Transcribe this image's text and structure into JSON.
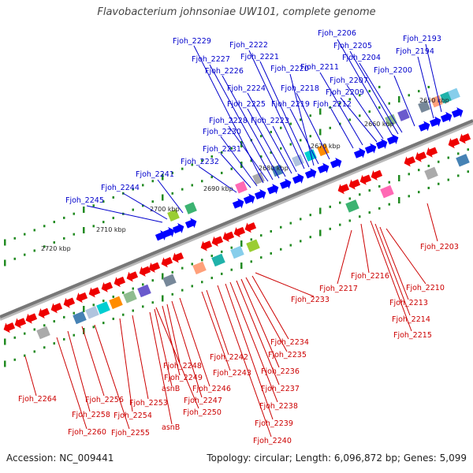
{
  "title": "Flavobacterium johnsoniae UW101, complete genome",
  "footer": {
    "accession": "Accession: NC_009441",
    "topology": "Topology: circular; Length: 6,096,872 bp; Genes: 5,099"
  },
  "colors": {
    "top_labels": "#0000cc",
    "bottom_labels": "#cc0000",
    "plus_strand": "#0000ff",
    "minus_strand": "#ee0000",
    "scale_ticks": "#228b22",
    "backbone": "#777777"
  },
  "scale_labels": [
    "2650 kbp",
    "2660 kbp",
    "2670 kbp",
    "2680 kbp",
    "2690 kbp",
    "2700 kbp",
    "2710 kbp",
    "2720 kbp"
  ],
  "top_genes": [
    "Fjoh_2193",
    "Fjoh_2194",
    "Fjoh_2200",
    "Fjoh_2204",
    "Fjoh_2205",
    "Fjoh_2206",
    "Fjoh_2207",
    "Fjoh_2209",
    "Fjoh_2211",
    "Fjoh_2212",
    "Fjoh_2218",
    "Fjoh_2219",
    "Fjoh_2220",
    "Fjoh_2221",
    "Fjoh_2222",
    "Fjoh_2223",
    "Fjoh_2224",
    "Fjoh_2225",
    "Fjoh_2226",
    "Fjoh_2227",
    "Fjoh_2228",
    "Fjoh_2229",
    "Fjoh_2230",
    "Fjoh_2231",
    "Fjoh_2232",
    "Fjoh_2241",
    "Fjoh_2244",
    "Fjoh_2245"
  ],
  "bottom_genes": [
    "Fjoh_2203",
    "Fjoh_2210",
    "Fjoh_2213",
    "Fjoh_2214",
    "Fjoh_2215",
    "Fjoh_2216",
    "Fjoh_2217",
    "Fjoh_2233",
    "Fjoh_2234",
    "Fjoh_2235",
    "Fjoh_2236",
    "Fjoh_2237",
    "Fjoh_2238",
    "Fjoh_2239",
    "Fjoh_2240",
    "Fjoh_2242",
    "Fjoh_2243",
    "Fjoh_2246",
    "Fjoh_2247",
    "Fjoh_2248",
    "Fjoh_2249",
    "Fjoh_2250",
    "asnB",
    "Fjoh_2253",
    "Fjoh_2254",
    "Fjoh_2255",
    "Fjoh_2256",
    "asnB",
    "Fjoh_2258",
    "Fjoh_2260",
    "Fjoh_2264"
  ]
}
